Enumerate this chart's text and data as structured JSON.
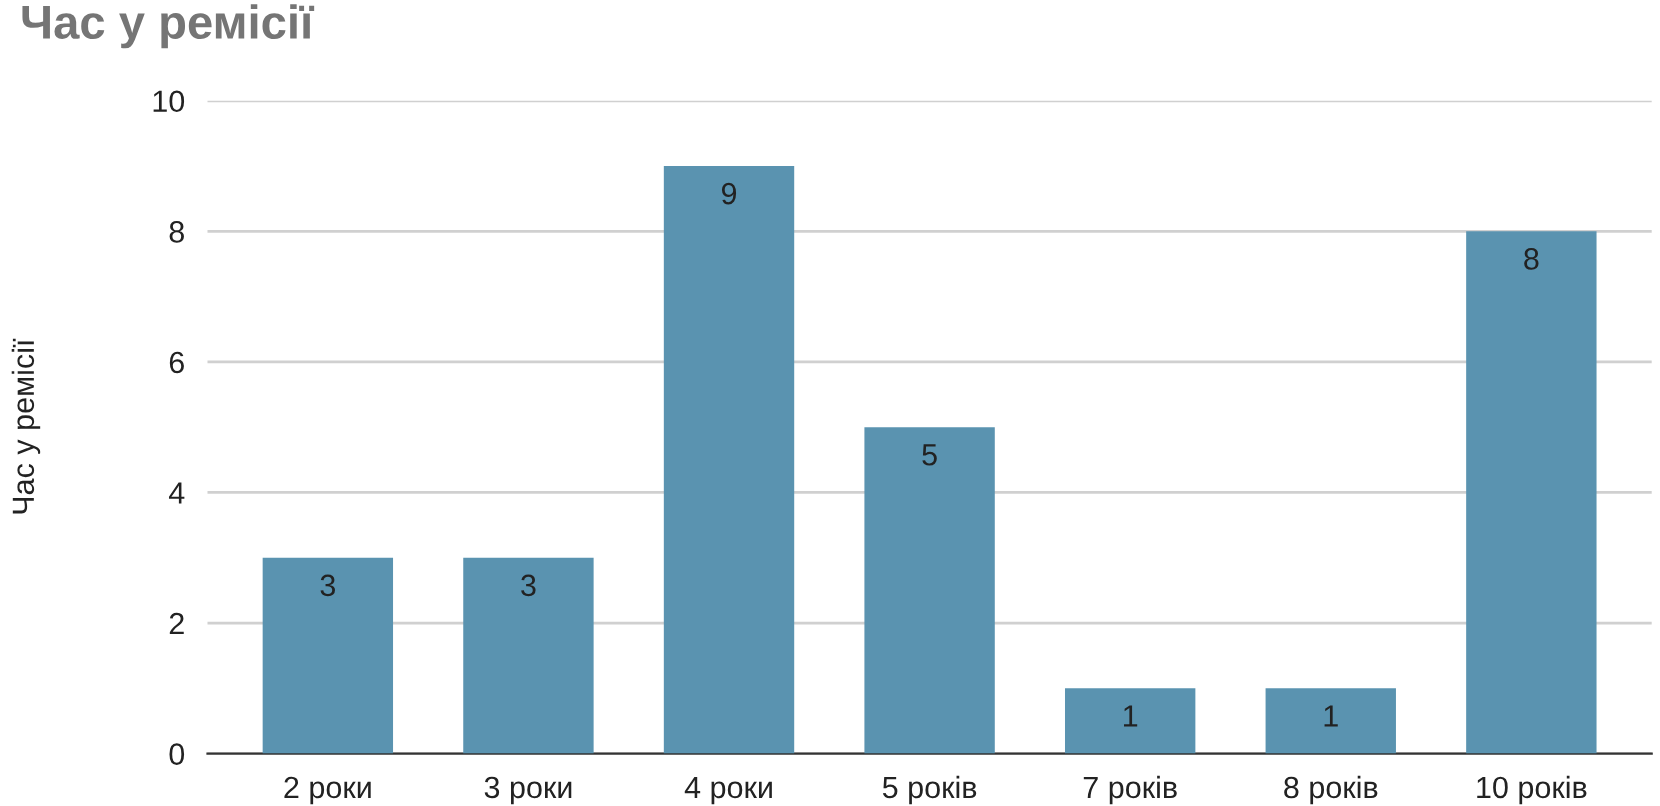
{
  "chart_data": {
    "type": "bar",
    "title": "Час у ремісії",
    "ylabel": "Час у ремісії",
    "categories": [
      "2 роки",
      "3 роки",
      "4 роки",
      "5 років",
      "7 років",
      "8 років",
      "10 років"
    ],
    "values": [
      3,
      3,
      9,
      5,
      1,
      1,
      8
    ],
    "color": "#5a93b0",
    "ylim": [
      0,
      10
    ],
    "yticks": [
      0,
      2,
      4,
      6,
      8,
      10
    ],
    "grid": "y",
    "data_labels": true,
    "legend": false
  }
}
